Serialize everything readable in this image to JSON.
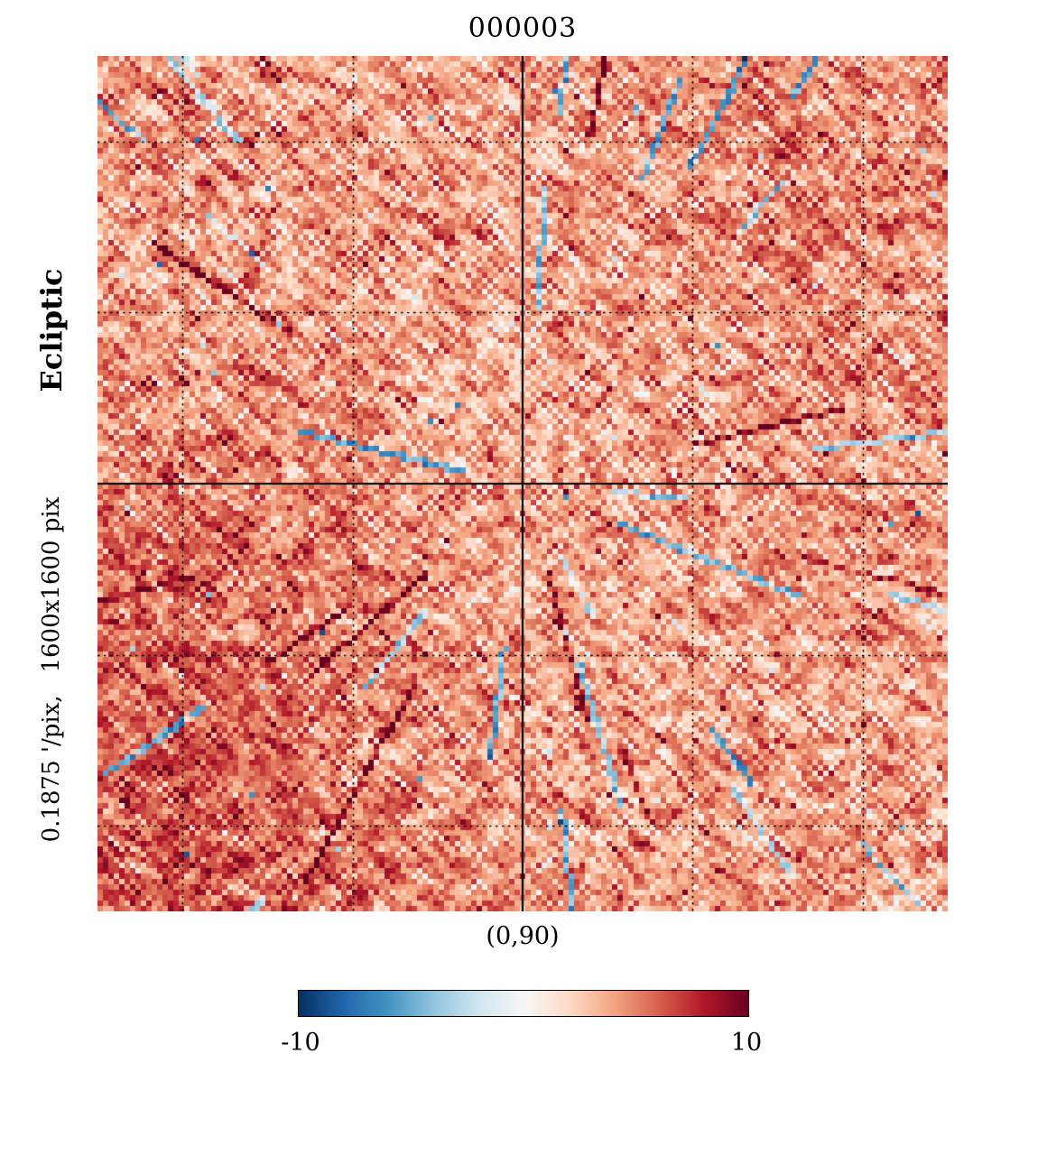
{
  "chart_data": {
    "type": "heatmap",
    "title": "000003",
    "coordinate_label": "Ecliptic",
    "scale_label": "0.1875 '/pix,   1600x1600 pix",
    "center_label": "(0,90)",
    "pixel_scale_arcmin_per_pix": 0.1875,
    "map_pixels": "1600x1600",
    "projection": "gnomonic",
    "colorbar": {
      "min": -10,
      "max": 10,
      "tick_labels": [
        "-10",
        "10"
      ],
      "colormap": "RdBu_r",
      "stops": [
        {
          "pos": 0.0,
          "color": "#053061"
        },
        {
          "pos": 0.1,
          "color": "#2166ac"
        },
        {
          "pos": 0.2,
          "color": "#4393c3"
        },
        {
          "pos": 0.3,
          "color": "#92c5de"
        },
        {
          "pos": 0.4,
          "color": "#d1e5f0"
        },
        {
          "pos": 0.5,
          "color": "#f7f7f7"
        },
        {
          "pos": 0.6,
          "color": "#fddbc7"
        },
        {
          "pos": 0.7,
          "color": "#f4a582"
        },
        {
          "pos": 0.8,
          "color": "#d6604d"
        },
        {
          "pos": 0.9,
          "color": "#b2182b"
        },
        {
          "pos": 1.0,
          "color": "#67001f"
        }
      ]
    },
    "map_field": {
      "description": "noisy sky map centered on ecliptic pole, predominantly positive (red) values with faint radial scan streaks and sparse blue/white speckles",
      "mean": 4.3,
      "std": 1.9,
      "value_range": [
        -10,
        10
      ],
      "seed": 3,
      "cell_size_px": 6,
      "streaks": 46,
      "speckle_fraction": 0.004,
      "blobs": [
        {
          "x": 0.07,
          "y": 0.9,
          "a": 1.8,
          "s": 0.22
        },
        {
          "x": 0.1,
          "y": 0.55,
          "a": 0.9,
          "s": 0.14
        },
        {
          "x": 0.5,
          "y": 0.45,
          "a": -0.6,
          "s": 0.35
        },
        {
          "x": 0.85,
          "y": 0.15,
          "a": 0.5,
          "s": 0.2
        }
      ]
    },
    "grid": {
      "solid_fractions": [
        0.5
      ],
      "dotted_fractions": [
        0.1,
        0.3,
        0.7,
        0.9
      ],
      "line_color": "#000000"
    }
  }
}
